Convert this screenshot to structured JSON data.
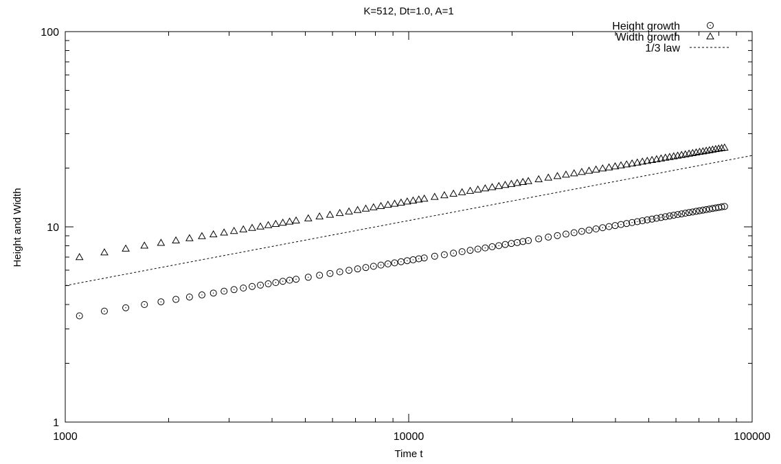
{
  "chart_data": {
    "type": "scatter",
    "title": "K=512, Dt=1.0, A=1",
    "xlabel": "Time t",
    "ylabel": "Height and Width",
    "xscale": "log",
    "yscale": "log",
    "xlim": [
      1000,
      100000
    ],
    "ylim": [
      1,
      100
    ],
    "grid": false,
    "legend_position": "top-right",
    "x_ticks": [
      1000,
      10000,
      100000
    ],
    "x_tick_labels": [
      "1000",
      "10000",
      "100000"
    ],
    "y_ticks": [
      1,
      10,
      100
    ],
    "y_tick_labels": [
      "1",
      "10",
      "100"
    ],
    "series": [
      {
        "name": "Height growth",
        "marker": "circle",
        "x": [
          1100,
          1300,
          1500,
          1700,
          1900,
          2100,
          2300,
          2500,
          2700,
          2900,
          3100,
          3300,
          3500,
          3700,
          3900,
          4100,
          4300,
          4500,
          4700,
          5100,
          5500,
          5900,
          6300,
          6700,
          7100,
          7500,
          7900,
          8300,
          8700,
          9100,
          9500,
          9900,
          10300,
          10700,
          11100,
          11900,
          12700,
          13500,
          14300,
          15100,
          15900,
          16700,
          17500,
          18300,
          19100,
          19900,
          20700,
          21500,
          22300,
          23900,
          25500,
          27100,
          28700,
          30300,
          31900,
          33500,
          35100,
          36700,
          38300,
          39900,
          41500,
          43100,
          44700,
          46300,
          47900,
          49500,
          51100,
          52700,
          54300,
          55900,
          57500,
          59100,
          60700,
          62300,
          63900,
          65500,
          67100,
          68700,
          70300,
          71900,
          73500,
          75100,
          76700,
          78300,
          79900,
          81500,
          83100
        ],
        "y": [
          3.5,
          3.7,
          3.85,
          4.0,
          4.13,
          4.25,
          4.37,
          4.48,
          4.58,
          4.68,
          4.77,
          4.86,
          4.95,
          5.03,
          5.11,
          5.18,
          5.26,
          5.33,
          5.39,
          5.52,
          5.65,
          5.77,
          5.88,
          5.99,
          6.09,
          6.19,
          6.28,
          6.37,
          6.46,
          6.54,
          6.63,
          6.71,
          6.78,
          6.86,
          6.93,
          7.07,
          7.2,
          7.33,
          7.46,
          7.58,
          7.69,
          7.8,
          7.91,
          8.01,
          8.12,
          8.22,
          8.31,
          8.41,
          8.5,
          8.68,
          8.86,
          9.02,
          9.18,
          9.33,
          9.48,
          9.62,
          9.76,
          9.9,
          10.03,
          10.15,
          10.28,
          10.4,
          10.52,
          10.63,
          10.75,
          10.86,
          10.96,
          11.07,
          11.17,
          11.27,
          11.37,
          11.47,
          11.56,
          11.65,
          11.75,
          11.84,
          11.92,
          12.01,
          12.09,
          12.18,
          12.26,
          12.34,
          12.42,
          12.5,
          12.57,
          12.65,
          12.72
        ]
      },
      {
        "name": "Width growth",
        "marker": "triangle",
        "x": [
          1100,
          1300,
          1500,
          1700,
          1900,
          2100,
          2300,
          2500,
          2700,
          2900,
          3100,
          3300,
          3500,
          3700,
          3900,
          4100,
          4300,
          4500,
          4700,
          5100,
          5500,
          5900,
          6300,
          6700,
          7100,
          7500,
          7900,
          8300,
          8700,
          9100,
          9500,
          9900,
          10300,
          10700,
          11100,
          11900,
          12700,
          13500,
          14300,
          15100,
          15900,
          16700,
          17500,
          18300,
          19100,
          19900,
          20700,
          21500,
          22300,
          23900,
          25500,
          27100,
          28700,
          30300,
          31900,
          33500,
          35100,
          36700,
          38300,
          39900,
          41500,
          43100,
          44700,
          46300,
          47900,
          49500,
          51100,
          52700,
          54300,
          55900,
          57500,
          59100,
          60700,
          62300,
          63900,
          65500,
          67100,
          68700,
          70300,
          71900,
          73500,
          75100,
          76700,
          78300,
          79900,
          81500,
          83100
        ],
        "y": [
          7.0,
          7.4,
          7.74,
          8.02,
          8.28,
          8.52,
          8.75,
          8.96,
          9.16,
          9.35,
          9.53,
          9.71,
          9.88,
          10.04,
          10.2,
          10.35,
          10.5,
          10.64,
          10.78,
          11.05,
          11.3,
          11.54,
          11.77,
          11.99,
          12.2,
          12.4,
          12.6,
          12.78,
          12.97,
          13.14,
          13.31,
          13.48,
          13.64,
          13.8,
          13.95,
          14.24,
          14.52,
          14.79,
          15.04,
          15.29,
          15.52,
          15.75,
          15.97,
          16.19,
          16.39,
          16.59,
          16.79,
          16.98,
          17.17,
          17.53,
          17.87,
          18.2,
          18.51,
          18.81,
          19.1,
          19.38,
          19.65,
          19.92,
          20.17,
          20.42,
          20.66,
          20.9,
          21.13,
          21.35,
          21.57,
          21.78,
          21.99,
          22.2,
          22.4,
          22.6,
          22.79,
          22.98,
          23.17,
          23.35,
          23.53,
          23.71,
          23.88,
          24.05,
          24.22,
          24.38,
          24.54,
          24.7,
          24.86,
          25.02,
          25.17,
          25.32,
          25.47
        ]
      },
      {
        "name": "1/3 law",
        "line": "dotted",
        "x": [
          1000,
          100000
        ],
        "y": [
          5.0,
          23.2
        ]
      }
    ]
  }
}
